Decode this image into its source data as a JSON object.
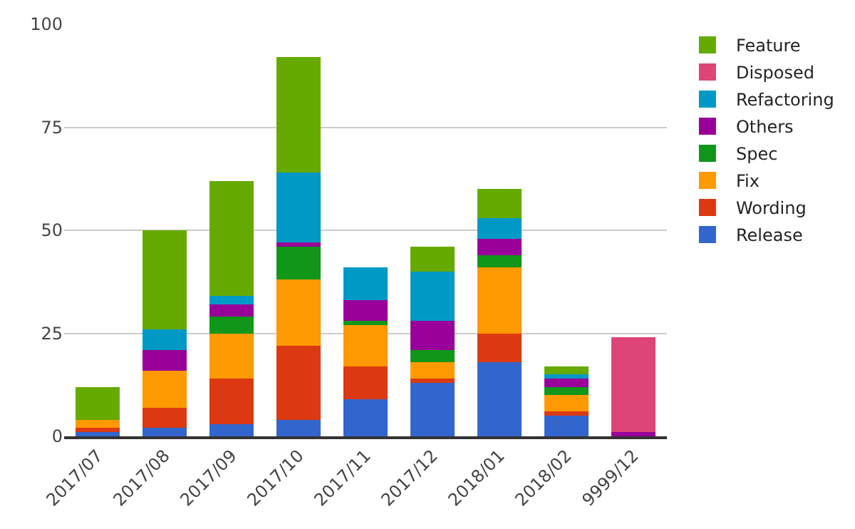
{
  "chart_data": {
    "type": "bar",
    "stacked": true,
    "categories": [
      "2017/07",
      "2017/08",
      "2017/09",
      "2017/10",
      "2017/11",
      "2017/12",
      "2018/01",
      "2018/02",
      "9999/12"
    ],
    "series": [
      {
        "name": "Release",
        "color": "#3366cc",
        "values": [
          1,
          2,
          3,
          4,
          9,
          13,
          18,
          5,
          0
        ]
      },
      {
        "name": "Wording",
        "color": "#dc3912",
        "values": [
          1,
          5,
          11,
          18,
          8,
          1,
          7,
          1,
          0
        ]
      },
      {
        "name": "Fix",
        "color": "#ff9900",
        "values": [
          2,
          9,
          11,
          16,
          10,
          4,
          16,
          4,
          0
        ]
      },
      {
        "name": "Spec",
        "color": "#109618",
        "values": [
          0,
          0,
          4,
          8,
          1,
          3,
          3,
          2,
          0
        ]
      },
      {
        "name": "Others",
        "color": "#990099",
        "values": [
          0,
          5,
          3,
          1,
          5,
          7,
          4,
          2,
          1
        ]
      },
      {
        "name": "Refactoring",
        "color": "#0099c6",
        "values": [
          0,
          5,
          2,
          17,
          8,
          12,
          5,
          1,
          0
        ]
      },
      {
        "name": "Disposed",
        "color": "#dd4477",
        "values": [
          0,
          0,
          0,
          0,
          0,
          0,
          0,
          0,
          23
        ]
      },
      {
        "name": "Feature",
        "color": "#66aa00",
        "values": [
          8,
          24,
          28,
          28,
          0,
          6,
          7,
          2,
          0
        ]
      }
    ],
    "ylim": [
      0,
      100
    ],
    "yticks": [
      0,
      25,
      50,
      75,
      100
    ],
    "grid": "y",
    "legend": "right"
  }
}
